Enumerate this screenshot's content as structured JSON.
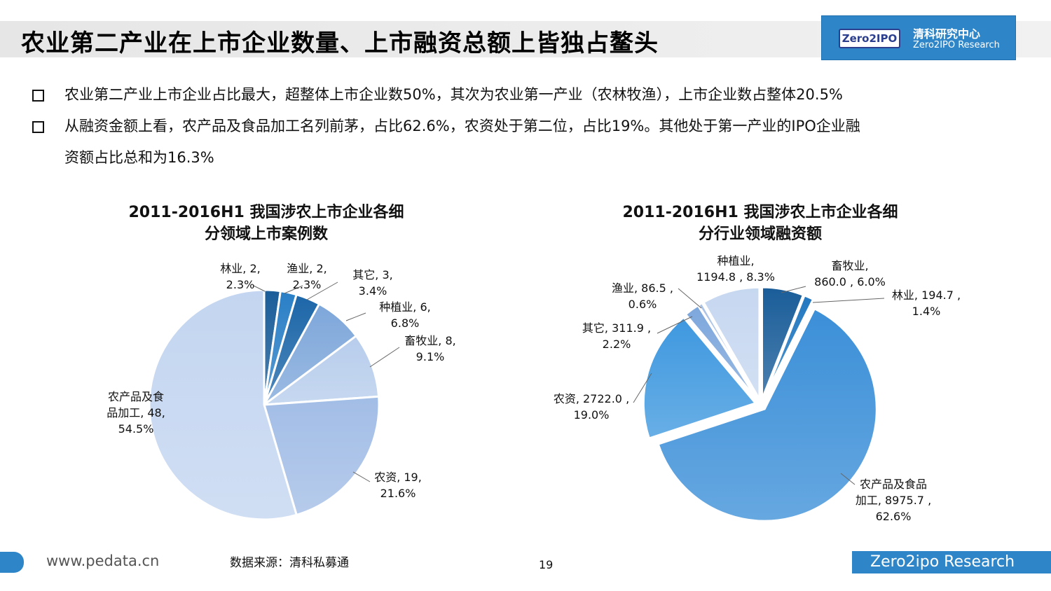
{
  "header": {
    "title": "农业第二产业在上市企业数量、上市融资总额上皆独占鳌头",
    "logo_mark": "Zero2IPO",
    "logo_cn": "清科研究中心",
    "logo_en": "Zero2IPO Research"
  },
  "bullets": [
    "农业第二产业上市企业占比最大，超整体上市企业数50%，其次为农业第一产业（农林牧渔），上市企业数占整体20.5%",
    "从融资金额上看，农产品及食品加工名列前茅，占比62.6%，农资处于第二位，占比19%。其他处于第一产业的IPO企业融",
    "资额占比总和为16.3%"
  ],
  "chart_data": [
    {
      "type": "pie",
      "title_line1": "2011-2016H1 我国涉农上市企业各细",
      "title_line2": "分领域上市案例数",
      "slices": [
        {
          "name": "林业",
          "value": 2,
          "pct": "2.3%",
          "label": [
            "林业, 2,",
            "2.3%"
          ],
          "color": "#1a5d99"
        },
        {
          "name": "渔业",
          "value": 2,
          "pct": "2.3%",
          "label": [
            "渔业, 2,",
            "2.3%"
          ],
          "color": "#2a7fc6"
        },
        {
          "name": "其它",
          "value": 3,
          "pct": "3.4%",
          "label": [
            "其它, 3,",
            "3.4%"
          ],
          "color": "#1c66a8"
        },
        {
          "name": "种植业",
          "value": 6,
          "pct": "6.8%",
          "label": [
            "种植业, 6,",
            "6.8%"
          ],
          "color": "#7ea7da"
        },
        {
          "name": "畜牧业",
          "value": 8,
          "pct": "9.1%",
          "label": [
            "畜牧业, 8,",
            "9.1%"
          ],
          "color": "#b7cdec"
        },
        {
          "name": "农资",
          "value": 19,
          "pct": "21.6%",
          "label": [
            "农资, 19,",
            "21.6%"
          ],
          "color": "#a2bde6"
        },
        {
          "name": "农产品及食品加工",
          "value": 48,
          "pct": "54.5%",
          "label": [
            "农产品及食",
            "品加工, 48,",
            "54.5%"
          ],
          "color": "#c3d5f0"
        }
      ]
    },
    {
      "type": "pie",
      "title_line1": "2011-2016H1 我国涉农上市企业各细",
      "title_line2": "分行业领域融资额",
      "slices": [
        {
          "name": "畜牧业",
          "value": 860.0,
          "pct": "6.0%",
          "label": [
            "畜牧业,",
            "860.0 , 6.0%"
          ],
          "color": "#1a5d99"
        },
        {
          "name": "林业",
          "value": 194.7,
          "pct": "1.4%",
          "label": [
            "林业, 194.7 ,",
            "1.4%"
          ],
          "color": "#2278c0"
        },
        {
          "name": "农产品及食品加工",
          "value": 8975.7,
          "pct": "62.6%",
          "label": [
            "农产品及食品",
            "加工, 8975.7 ,",
            "62.6%"
          ],
          "color": "#3b8fd8"
        },
        {
          "name": "农资",
          "value": 2722.0,
          "pct": "19.0%",
          "label": [
            "农资, 2722.0 ,",
            "19.0%"
          ],
          "color": "#3e98df"
        },
        {
          "name": "其它",
          "value": 311.9,
          "pct": "2.2%",
          "label": [
            "其它, 311.9 ,",
            "2.2%"
          ],
          "color": "#7da7dc"
        },
        {
          "name": "渔业",
          "value": 86.5,
          "pct": "0.6%",
          "label": [
            "渔业, 86.5 ,",
            "0.6%"
          ],
          "color": "#a9c2e6"
        },
        {
          "name": "种植业",
          "value": 1194.8,
          "pct": "8.3%",
          "label": [
            "种植业,",
            "1194.8 , 8.3%"
          ],
          "color": "#c6d7f0"
        }
      ]
    }
  ],
  "footer": {
    "url": "www.pedata.cn",
    "source": "数据来源：清科私募通",
    "page": "19",
    "brand": "Zero2ipo Research"
  }
}
